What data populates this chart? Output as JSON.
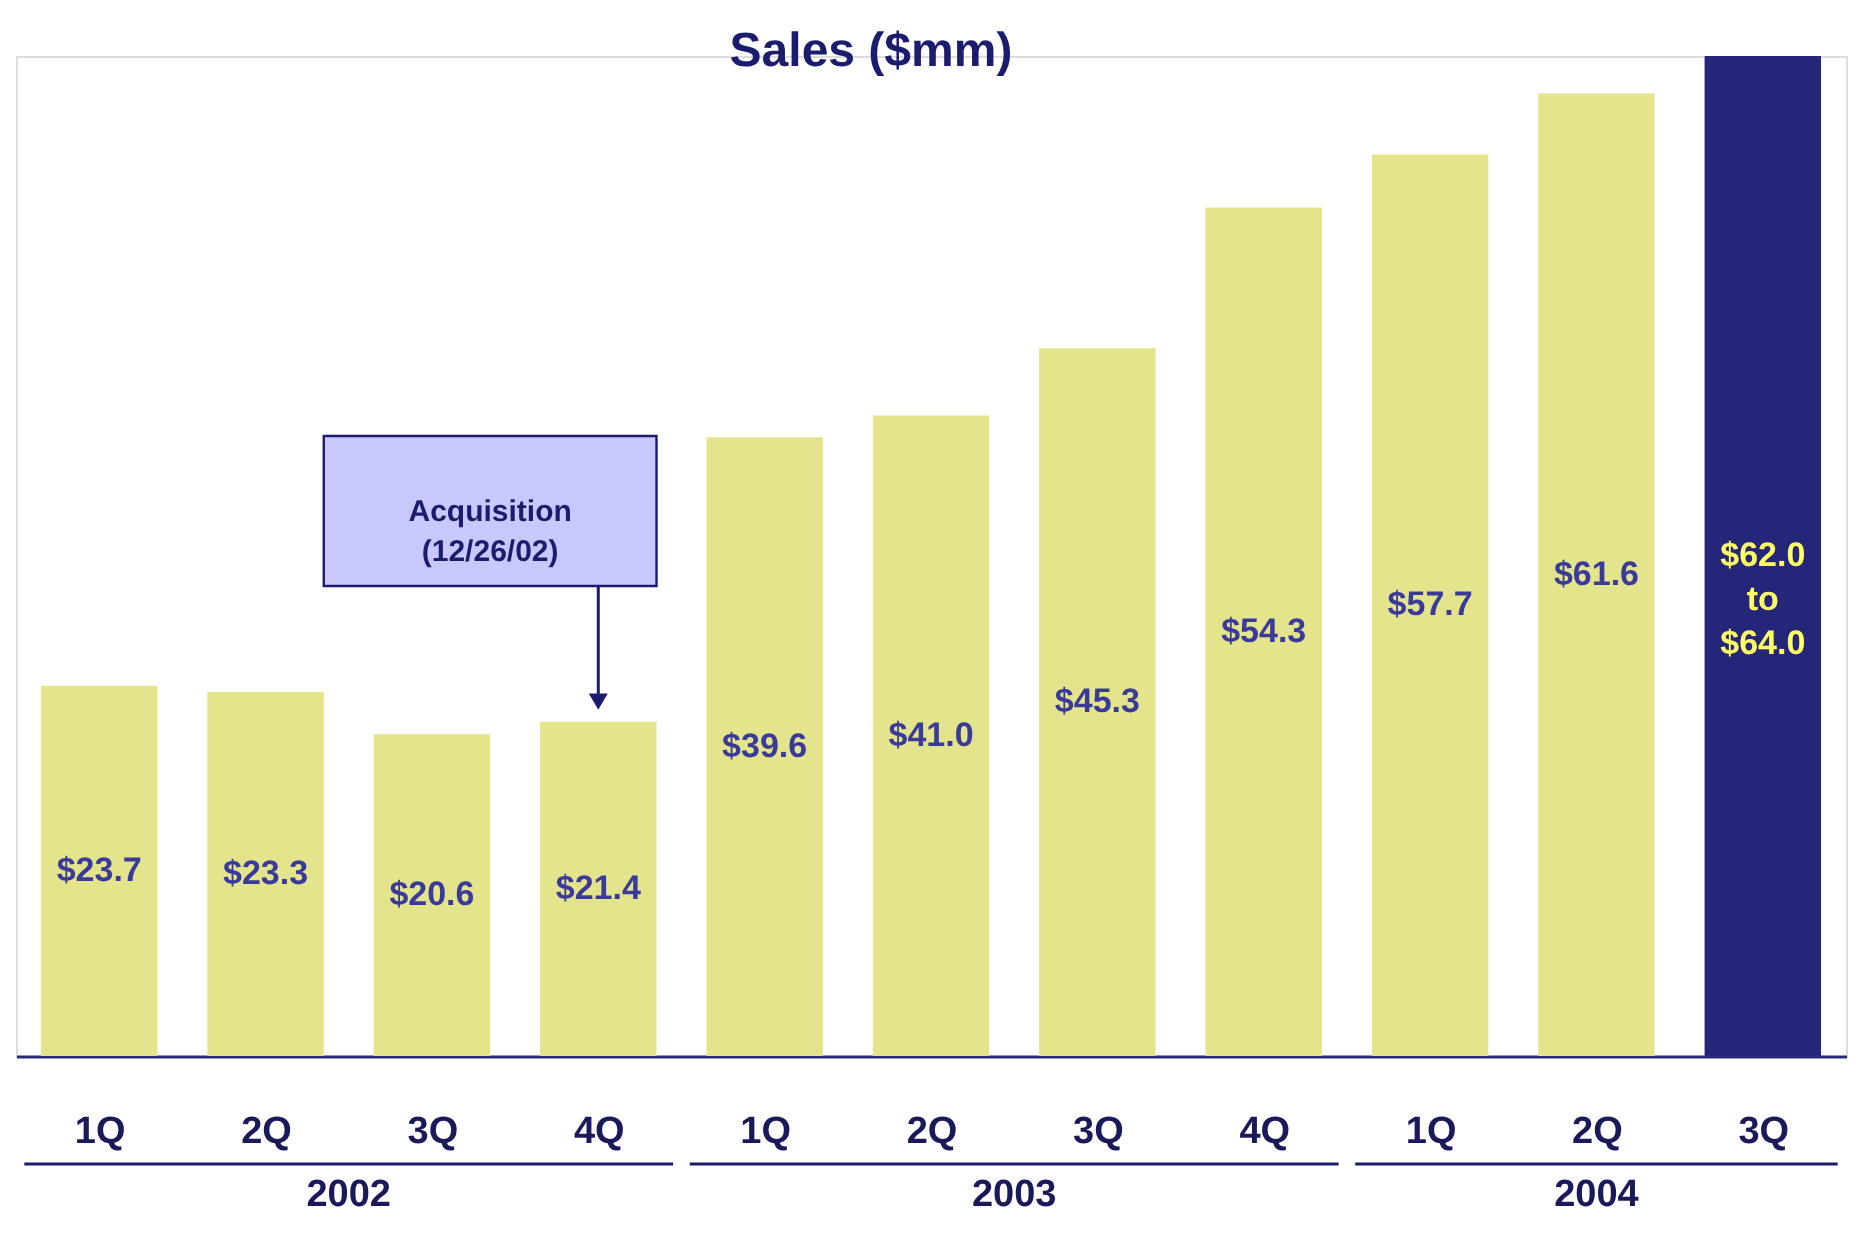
{
  "chart_data": {
    "type": "bar",
    "title": "Sales ($mm)",
    "categories": [
      "1Q",
      "2Q",
      "3Q",
      "4Q",
      "1Q",
      "2Q",
      "3Q",
      "4Q",
      "1Q",
      "2Q",
      "3Q"
    ],
    "values": [
      23.7,
      23.3,
      20.6,
      21.4,
      39.6,
      41.0,
      45.3,
      54.3,
      57.7,
      61.6,
      64.0
    ],
    "value_labels": [
      "$23.7",
      "$23.3",
      "$20.6",
      "$21.4",
      "$39.6",
      "$41.0",
      "$45.3",
      "$54.3",
      "$57.7",
      "$61.6",
      "$62.0 to $64.0"
    ],
    "colors": [
      "#e4e48c",
      "#e4e48c",
      "#e4e48c",
      "#e4e48c",
      "#e4e48c",
      "#e4e48c",
      "#e4e48c",
      "#e4e48c",
      "#e4e48c",
      "#e4e48c",
      "#25257a"
    ],
    "annotations": [
      "Acquisition (12/26/02)",
      "2002",
      "2003",
      "2004"
    ],
    "grid": false
  }
}
